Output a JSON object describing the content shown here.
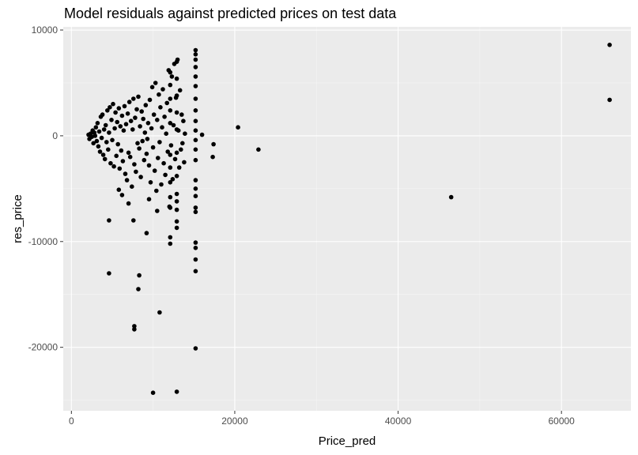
{
  "chart_data": {
    "type": "scatter",
    "title": "Model residuals against predicted prices on test data",
    "xlabel": "Price_pred",
    "ylabel": "res_price",
    "xlim": [
      -1000,
      68500
    ],
    "ylim": [
      -26000,
      10300
    ],
    "xticks": [
      0,
      20000,
      40000,
      60000
    ],
    "xtick_labels": [
      "0",
      "20000",
      "40000",
      "60000"
    ],
    "yticks": [
      -20000,
      -10000,
      0,
      10000
    ],
    "ytick_labels": [
      "-20000",
      "-10000",
      "0",
      "10000"
    ],
    "grid": true,
    "legend": "none",
    "colors": {
      "panel": "#ebebeb",
      "grid_major": "#ffffff",
      "grid_minor": "#f5f5f5",
      "point": "#000000",
      "tick_text": "#4d4d4d",
      "tick_mark": "#333333"
    },
    "points": [
      {
        "x": 2100,
        "y": 100
      },
      {
        "x": 2200,
        "y": -300
      },
      {
        "x": 2350,
        "y": 200
      },
      {
        "x": 2500,
        "y": -100
      },
      {
        "x": 2600,
        "y": 500
      },
      {
        "x": 2700,
        "y": -700
      },
      {
        "x": 2800,
        "y": 300
      },
      {
        "x": 2900,
        "y": 0
      },
      {
        "x": 3000,
        "y": 800
      },
      {
        "x": 3100,
        "y": -500
      },
      {
        "x": 3200,
        "y": 1200
      },
      {
        "x": 3300,
        "y": -1000
      },
      {
        "x": 3400,
        "y": 400
      },
      {
        "x": 3500,
        "y": -1500
      },
      {
        "x": 3600,
        "y": 1800
      },
      {
        "x": 3700,
        "y": -200
      },
      {
        "x": 3800,
        "y": 2000
      },
      {
        "x": 3900,
        "y": -1800
      },
      {
        "x": 4000,
        "y": 600
      },
      {
        "x": 4100,
        "y": -2200
      },
      {
        "x": 4200,
        "y": 1000
      },
      {
        "x": 4300,
        "y": -600
      },
      {
        "x": 4400,
        "y": 2400
      },
      {
        "x": 4500,
        "y": -1300
      },
      {
        "x": 4600,
        "y": 300
      },
      {
        "x": 4700,
        "y": 2700
      },
      {
        "x": 4800,
        "y": -2600
      },
      {
        "x": 4900,
        "y": 1500
      },
      {
        "x": 5000,
        "y": -400
      },
      {
        "x": 5100,
        "y": 3000
      },
      {
        "x": 5200,
        "y": -2900
      },
      {
        "x": 5300,
        "y": 700
      },
      {
        "x": 5400,
        "y": 2200
      },
      {
        "x": 5500,
        "y": -1900
      },
      {
        "x": 5600,
        "y": 1300
      },
      {
        "x": 5700,
        "y": -800
      },
      {
        "x": 5800,
        "y": 2600
      },
      {
        "x": 5900,
        "y": -3100
      },
      {
        "x": 6000,
        "y": 900
      },
      {
        "x": 6100,
        "y": -1400
      },
      {
        "x": 6200,
        "y": 1900
      },
      {
        "x": 6300,
        "y": -2400
      },
      {
        "x": 6400,
        "y": 500
      },
      {
        "x": 6500,
        "y": 2800
      },
      {
        "x": 6600,
        "y": -3600
      },
      {
        "x": 6700,
        "y": 1100
      },
      {
        "x": 6800,
        "y": -4200
      },
      {
        "x": 6900,
        "y": 2100
      },
      {
        "x": 7000,
        "y": -1600
      },
      {
        "x": 7100,
        "y": 3200
      },
      {
        "x": 7200,
        "y": -2000
      },
      {
        "x": 7300,
        "y": 1400
      },
      {
        "x": 7400,
        "y": -4800
      },
      {
        "x": 7500,
        "y": 600
      },
      {
        "x": 7600,
        "y": 3500
      },
      {
        "x": 7700,
        "y": -2700
      },
      {
        "x": 7800,
        "y": 1700
      },
      {
        "x": 7900,
        "y": -3400
      },
      {
        "x": 8000,
        "y": 2500
      },
      {
        "x": 8100,
        "y": -700
      },
      {
        "x": 8200,
        "y": 3700
      },
      {
        "x": 8300,
        "y": -1200
      },
      {
        "x": 8400,
        "y": 900
      },
      {
        "x": 8500,
        "y": -3900
      },
      {
        "x": 8600,
        "y": 2300
      },
      {
        "x": 8700,
        "y": -500
      },
      {
        "x": 8800,
        "y": 1600
      },
      {
        "x": 8900,
        "y": -2300
      },
      {
        "x": 9000,
        "y": 300
      },
      {
        "x": 9100,
        "y": 2900
      },
      {
        "x": 9200,
        "y": -1700
      },
      {
        "x": 9300,
        "y": -300
      },
      {
        "x": 9400,
        "y": 1200
      },
      {
        "x": 9500,
        "y": -2800
      },
      {
        "x": 9600,
        "y": 3400
      },
      {
        "x": 9700,
        "y": -4400
      },
      {
        "x": 9800,
        "y": 700
      },
      {
        "x": 9900,
        "y": 4600
      },
      {
        "x": 10000,
        "y": -1100
      },
      {
        "x": 10100,
        "y": 2000
      },
      {
        "x": 10200,
        "y": -3300
      },
      {
        "x": 10300,
        "y": 5000
      },
      {
        "x": 10400,
        "y": -5200
      },
      {
        "x": 10500,
        "y": 1500
      },
      {
        "x": 10600,
        "y": -2100
      },
      {
        "x": 10700,
        "y": 3900
      },
      {
        "x": 10800,
        "y": -600
      },
      {
        "x": 10900,
        "y": 2700
      },
      {
        "x": 11000,
        "y": -4600
      },
      {
        "x": 11100,
        "y": 800
      },
      {
        "x": 11200,
        "y": 4400
      },
      {
        "x": 11300,
        "y": -2600
      },
      {
        "x": 11400,
        "y": 1800
      },
      {
        "x": 11500,
        "y": -3700
      },
      {
        "x": 11600,
        "y": 200
      },
      {
        "x": 11700,
        "y": 3100
      },
      {
        "x": 11800,
        "y": -1500
      },
      {
        "x": 11900,
        "y": 6200
      },
      {
        "x": 12000,
        "y": -6700
      },
      {
        "x": 12100,
        "y": 2400
      },
      {
        "x": 12200,
        "y": -900
      },
      {
        "x": 12300,
        "y": 5600
      },
      {
        "x": 12400,
        "y": -4100
      },
      {
        "x": 12500,
        "y": 1000
      },
      {
        "x": 12600,
        "y": 6800
      },
      {
        "x": 12700,
        "y": -2200
      },
      {
        "x": 12800,
        "y": 3600
      },
      {
        "x": 12900,
        "y": -5500
      },
      {
        "x": 13000,
        "y": 7200
      },
      {
        "x": 13100,
        "y": 500
      },
      {
        "x": 13200,
        "y": -3000
      },
      {
        "x": 13300,
        "y": 4300
      },
      {
        "x": 13400,
        "y": -1300
      },
      {
        "x": 13500,
        "y": 2000
      },
      {
        "x": 13600,
        "y": -700
      },
      {
        "x": 13700,
        "y": 1400
      },
      {
        "x": 13800,
        "y": -2500
      },
      {
        "x": 13900,
        "y": 200
      },
      {
        "x": 12100,
        "y": 6000
      },
      {
        "x": 12100,
        "y": 4800
      },
      {
        "x": 12100,
        "y": 3500
      },
      {
        "x": 12100,
        "y": 1200
      },
      {
        "x": 12100,
        "y": -1800
      },
      {
        "x": 12100,
        "y": -3000
      },
      {
        "x": 12100,
        "y": -4400
      },
      {
        "x": 12100,
        "y": -5800
      },
      {
        "x": 12100,
        "y": -6800
      },
      {
        "x": 12100,
        "y": -9600
      },
      {
        "x": 12100,
        "y": -10200
      },
      {
        "x": 12900,
        "y": 7000
      },
      {
        "x": 12900,
        "y": 5400
      },
      {
        "x": 12900,
        "y": 3800
      },
      {
        "x": 12900,
        "y": 2200
      },
      {
        "x": 12900,
        "y": 600
      },
      {
        "x": 12900,
        "y": -1600
      },
      {
        "x": 12900,
        "y": -3800
      },
      {
        "x": 12900,
        "y": -6200
      },
      {
        "x": 12900,
        "y": -7000
      },
      {
        "x": 12900,
        "y": -8100
      },
      {
        "x": 12900,
        "y": -8700
      },
      {
        "x": 12900,
        "y": -24200
      },
      {
        "x": 15200,
        "y": 8100
      },
      {
        "x": 15200,
        "y": 7700
      },
      {
        "x": 15200,
        "y": 7200
      },
      {
        "x": 15200,
        "y": 6500
      },
      {
        "x": 15200,
        "y": 5600
      },
      {
        "x": 15200,
        "y": 4700
      },
      {
        "x": 15200,
        "y": 3500
      },
      {
        "x": 15200,
        "y": 2400
      },
      {
        "x": 15200,
        "y": 1400
      },
      {
        "x": 15200,
        "y": 500
      },
      {
        "x": 15200,
        "y": -400
      },
      {
        "x": 15200,
        "y": -1300
      },
      {
        "x": 15200,
        "y": -2300
      },
      {
        "x": 15200,
        "y": -4200
      },
      {
        "x": 15200,
        "y": -5000
      },
      {
        "x": 15200,
        "y": -5700
      },
      {
        "x": 15200,
        "y": -6800
      },
      {
        "x": 15200,
        "y": -7200
      },
      {
        "x": 15200,
        "y": -10100
      },
      {
        "x": 15200,
        "y": -10600
      },
      {
        "x": 15200,
        "y": -11700
      },
      {
        "x": 15200,
        "y": -12800
      },
      {
        "x": 15200,
        "y": -20100
      },
      {
        "x": 16000,
        "y": 100
      },
      {
        "x": 17400,
        "y": -800
      },
      {
        "x": 17300,
        "y": -2000
      },
      {
        "x": 20400,
        "y": 800
      },
      {
        "x": 22900,
        "y": -1300
      },
      {
        "x": 46500,
        "y": -5800
      },
      {
        "x": 65900,
        "y": 8600
      },
      {
        "x": 65900,
        "y": 3400
      },
      {
        "x": 4600,
        "y": -8000
      },
      {
        "x": 7600,
        "y": -8000
      },
      {
        "x": 9200,
        "y": -9200
      },
      {
        "x": 4600,
        "y": -13000
      },
      {
        "x": 8300,
        "y": -13200
      },
      {
        "x": 8200,
        "y": -14500
      },
      {
        "x": 10800,
        "y": -16700
      },
      {
        "x": 7700,
        "y": -18000
      },
      {
        "x": 7700,
        "y": -18300
      },
      {
        "x": 10000,
        "y": -24300
      },
      {
        "x": 5800,
        "y": -5100
      },
      {
        "x": 6200,
        "y": -5600
      },
      {
        "x": 7000,
        "y": -6400
      },
      {
        "x": 9500,
        "y": -6000
      },
      {
        "x": 10500,
        "y": -7100
      }
    ]
  }
}
